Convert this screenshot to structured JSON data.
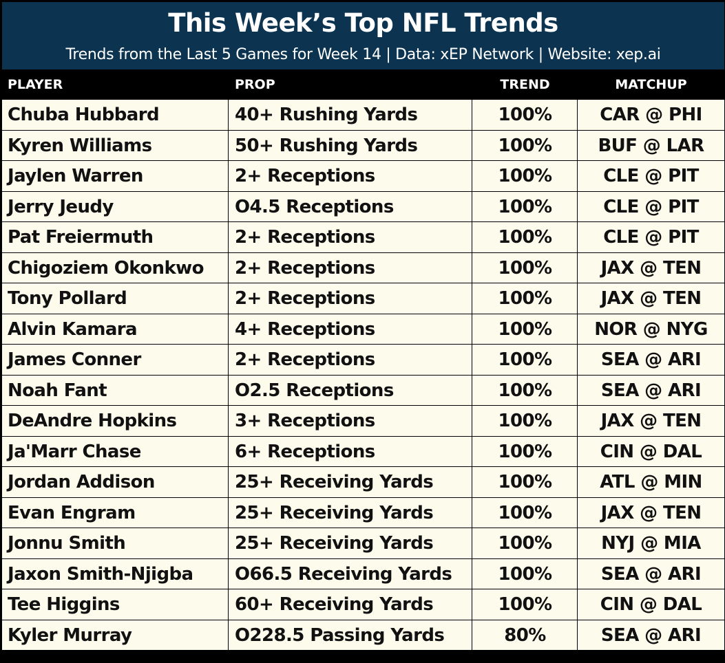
{
  "banner": {
    "title": "This Week’s Top NFL Trends",
    "subtitle": "Trends from the Last 5 Games for Week 14 | Data: xEP Network | Website: xep.ai",
    "background_color": "#0c3450"
  },
  "table": {
    "columns": [
      "PLAYER",
      "PROP",
      "TREND",
      "MATCHUP"
    ],
    "rows": [
      {
        "player": "Chuba Hubbard",
        "prop": "40+ Rushing Yards",
        "trend": "100%",
        "matchup": "CAR @ PHI"
      },
      {
        "player": "Kyren Williams",
        "prop": "50+ Rushing Yards",
        "trend": "100%",
        "matchup": "BUF @ LAR"
      },
      {
        "player": "Jaylen Warren",
        "prop": "2+ Receptions",
        "trend": "100%",
        "matchup": "CLE @ PIT"
      },
      {
        "player": "Jerry Jeudy",
        "prop": "O4.5 Receptions",
        "trend": "100%",
        "matchup": "CLE @ PIT"
      },
      {
        "player": "Pat Freiermuth",
        "prop": "2+ Receptions",
        "trend": "100%",
        "matchup": "CLE @ PIT"
      },
      {
        "player": "Chigoziem Okonkwo",
        "prop": "2+ Receptions",
        "trend": "100%",
        "matchup": "JAX @ TEN"
      },
      {
        "player": "Tony Pollard",
        "prop": "2+ Receptions",
        "trend": "100%",
        "matchup": "JAX @ TEN"
      },
      {
        "player": "Alvin Kamara",
        "prop": "4+ Receptions",
        "trend": "100%",
        "matchup": "NOR @ NYG"
      },
      {
        "player": "James Conner",
        "prop": "2+ Receptions",
        "trend": "100%",
        "matchup": "SEA @ ARI"
      },
      {
        "player": "Noah Fant",
        "prop": "O2.5 Receptions",
        "trend": "100%",
        "matchup": "SEA @ ARI"
      },
      {
        "player": "DeAndre Hopkins",
        "prop": "3+ Receptions",
        "trend": "100%",
        "matchup": "JAX @ TEN"
      },
      {
        "player": "Ja'Marr Chase",
        "prop": "6+ Receptions",
        "trend": "100%",
        "matchup": "CIN @ DAL"
      },
      {
        "player": "Jordan Addison",
        "prop": "25+ Receiving Yards",
        "trend": "100%",
        "matchup": "ATL @ MIN"
      },
      {
        "player": "Evan Engram",
        "prop": "25+ Receiving Yards",
        "trend": "100%",
        "matchup": "JAX @ TEN"
      },
      {
        "player": "Jonnu Smith",
        "prop": "25+ Receiving Yards",
        "trend": "100%",
        "matchup": "NYJ @ MIA"
      },
      {
        "player": "Jaxon Smith-Njigba",
        "prop": "O66.5 Receiving Yards",
        "trend": "100%",
        "matchup": "SEA @ ARI"
      },
      {
        "player": "Tee Higgins",
        "prop": "60+ Receiving Yards",
        "trend": "100%",
        "matchup": "CIN @ DAL"
      },
      {
        "player": "Kyler Murray",
        "prop": "O228.5 Passing Yards",
        "trend": "80%",
        "matchup": "SEA @ ARI"
      }
    ],
    "row_background_color": "#fdfbec"
  }
}
